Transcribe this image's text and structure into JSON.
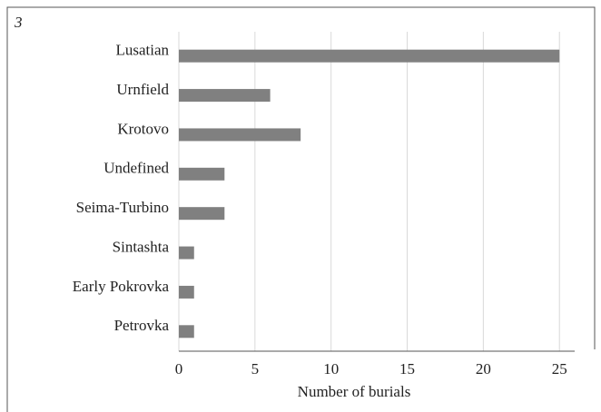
{
  "panel_label": "3",
  "chart_data": {
    "type": "bar",
    "orientation": "horizontal",
    "categories": [
      "Lusatian",
      "Urnfield",
      "Krotovo",
      "Undefined",
      "Seima-Turbino",
      "Sintashta",
      "Early Pokrovka",
      "Petrovka"
    ],
    "values": [
      25,
      6,
      8,
      3,
      3,
      1,
      1,
      1
    ],
    "color": "#808080",
    "xlabel": "Number of burials",
    "xlim": [
      0,
      26
    ],
    "xticks": [
      0,
      5,
      10,
      15,
      20,
      25
    ],
    "grid": true
  }
}
